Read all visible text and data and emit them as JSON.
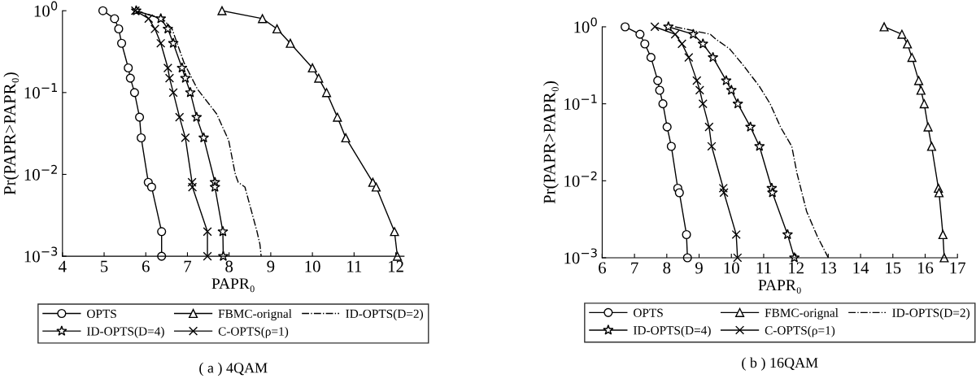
{
  "chart_data": [
    {
      "type": "line",
      "title": "( a ) 4QAM",
      "xlabel": "PAPR₀",
      "ylabel": "Pr(PAPR>PAPR₀)",
      "log": "y",
      "grid": false,
      "legend": "bottom",
      "xlim": [
        4,
        12.2
      ],
      "xticks": [
        4,
        5,
        6,
        7,
        8,
        9,
        10,
        11,
        12
      ],
      "ylim": [
        0.001,
        1
      ],
      "yticks": [
        {
          "value": 0.001,
          "label": "10$^{−3}$"
        },
        {
          "value": 0.01,
          "label": "10$^{−2}$"
        },
        {
          "value": 0.1,
          "label": "10$^{−1}$"
        },
        {
          "value": 1,
          "label": "10$^{0}$"
        }
      ],
      "series": [
        {
          "name": "OPTS",
          "color": "#000000",
          "marker": "circle",
          "line_style": "solid",
          "x": [
            4.97,
            5.25,
            5.35,
            5.42,
            5.58,
            5.63,
            5.73,
            5.85,
            5.89,
            6.06,
            6.14,
            6.38,
            6.38
          ],
          "values": [
            1,
            0.8,
            0.6,
            0.4,
            0.2,
            0.15,
            0.1,
            0.05,
            0.028,
            0.008,
            0.007,
            0.002,
            0.001
          ]
        },
        {
          "name": "FBMC-orignal",
          "color": "#000000",
          "marker": "triangle",
          "line_style": "solid",
          "x": [
            7.83,
            8.8,
            9.15,
            9.47,
            10.0,
            10.15,
            10.34,
            10.6,
            10.8,
            11.45,
            11.53,
            11.97,
            12.04
          ],
          "values": [
            1,
            0.8,
            0.6,
            0.4,
            0.2,
            0.15,
            0.1,
            0.05,
            0.028,
            0.008,
            0.007,
            0.002,
            0.001
          ]
        },
        {
          "name": "ID-OPTS(D=2)",
          "color": "#000000",
          "marker": "none",
          "line_style": "dashdot",
          "x": [
            5.77,
            6.4,
            6.63,
            6.92,
            7.24,
            7.7,
            7.99,
            8.15,
            8.22,
            8.38,
            8.67,
            8.74,
            8.77
          ],
          "values": [
            1,
            0.8,
            0.6,
            0.23,
            0.11,
            0.055,
            0.026,
            0.01,
            0.008,
            0.007,
            0.002,
            0.0014,
            0.001
          ]
        },
        {
          "name": "ID-OPTS(D=4)",
          "color": "#000000",
          "marker": "star",
          "line_style": "solid",
          "x": [
            5.77,
            6.36,
            6.53,
            6.66,
            6.87,
            6.95,
            7.07,
            7.22,
            7.39,
            7.66,
            7.66,
            7.85,
            7.86
          ],
          "values": [
            1,
            0.8,
            0.6,
            0.4,
            0.2,
            0.15,
            0.1,
            0.05,
            0.028,
            0.008,
            0.007,
            0.002,
            0.001
          ]
        },
        {
          "name": "C-OPTS(ρ=1)",
          "color": "#000000",
          "marker": "cross",
          "line_style": "solid",
          "x": [
            5.75,
            6.07,
            6.22,
            6.36,
            6.53,
            6.57,
            6.66,
            6.81,
            6.95,
            7.11,
            7.12,
            7.48,
            7.48
          ],
          "values": [
            1,
            0.8,
            0.6,
            0.4,
            0.2,
            0.15,
            0.1,
            0.05,
            0.028,
            0.008,
            0.007,
            0.002,
            0.001
          ]
        }
      ]
    },
    {
      "type": "line",
      "title": "( b ) 16QAM",
      "xlabel": "PAPR₀",
      "ylabel": "Pr(PAPR>PAPR₀)",
      "log": "y",
      "grid": false,
      "legend": "bottom",
      "xlim": [
        6,
        17
      ],
      "xticks": [
        6,
        7,
        8,
        9,
        10,
        11,
        12,
        13,
        14,
        15,
        16,
        17
      ],
      "ylim": [
        0.001,
        1
      ],
      "yticks": [
        {
          "value": 0.001,
          "label": "10$^{−3}$"
        },
        {
          "value": 0.01,
          "label": "10$^{−2}$"
        },
        {
          "value": 0.1,
          "label": "10$^{−1}$"
        },
        {
          "value": 1,
          "label": "10$^{0}$"
        }
      ],
      "series": [
        {
          "name": "OPTS",
          "color": "#000000",
          "marker": "circle",
          "line_style": "solid",
          "x": [
            6.71,
            7.17,
            7.32,
            7.51,
            7.72,
            7.78,
            7.88,
            8.01,
            8.14,
            8.34,
            8.39,
            8.61,
            8.64
          ],
          "values": [
            1,
            0.8,
            0.6,
            0.4,
            0.2,
            0.15,
            0.1,
            0.05,
            0.028,
            0.008,
            0.007,
            0.002,
            0.001
          ]
        },
        {
          "name": "FBMC-orignal",
          "color": "#000000",
          "marker": "triangle",
          "line_style": "solid",
          "x": [
            14.73,
            15.28,
            15.45,
            15.59,
            15.8,
            15.87,
            15.97,
            16.09,
            16.2,
            16.41,
            16.43,
            16.55,
            16.59
          ],
          "values": [
            1,
            0.8,
            0.6,
            0.4,
            0.2,
            0.15,
            0.1,
            0.05,
            0.028,
            0.008,
            0.007,
            0.002,
            0.001
          ]
        },
        {
          "name": "ID-OPTS(D=2)",
          "color": "#000000",
          "marker": "none",
          "line_style": "dashdot",
          "x": [
            8.26,
            9.35,
            9.52,
            9.94,
            10.36,
            10.86,
            11.2,
            11.53,
            11.87,
            12.03,
            12.33,
            12.66,
            13.0
          ],
          "values": [
            1,
            0.8,
            0.69,
            0.52,
            0.32,
            0.17,
            0.1,
            0.049,
            0.028,
            0.0126,
            0.004,
            0.0019,
            0.001
          ]
        },
        {
          "name": "ID-OPTS(D=4)",
          "color": "#000000",
          "marker": "star",
          "line_style": "solid",
          "x": [
            8.05,
            8.82,
            9.12,
            9.43,
            9.84,
            10.0,
            10.2,
            10.59,
            10.87,
            11.25,
            11.27,
            11.74,
            11.95
          ],
          "values": [
            1,
            0.8,
            0.6,
            0.4,
            0.2,
            0.15,
            0.1,
            0.05,
            0.028,
            0.008,
            0.007,
            0.002,
            0.001
          ]
        },
        {
          "name": "C-OPTS(ρ=1)",
          "color": "#000000",
          "marker": "cross",
          "line_style": "solid",
          "x": [
            7.63,
            8.26,
            8.47,
            8.68,
            8.93,
            9.02,
            9.12,
            9.31,
            9.39,
            9.75,
            9.77,
            10.15,
            10.19
          ],
          "values": [
            1,
            0.8,
            0.6,
            0.4,
            0.2,
            0.15,
            0.1,
            0.05,
            0.028,
            0.008,
            0.007,
            0.002,
            0.001
          ]
        }
      ]
    }
  ]
}
